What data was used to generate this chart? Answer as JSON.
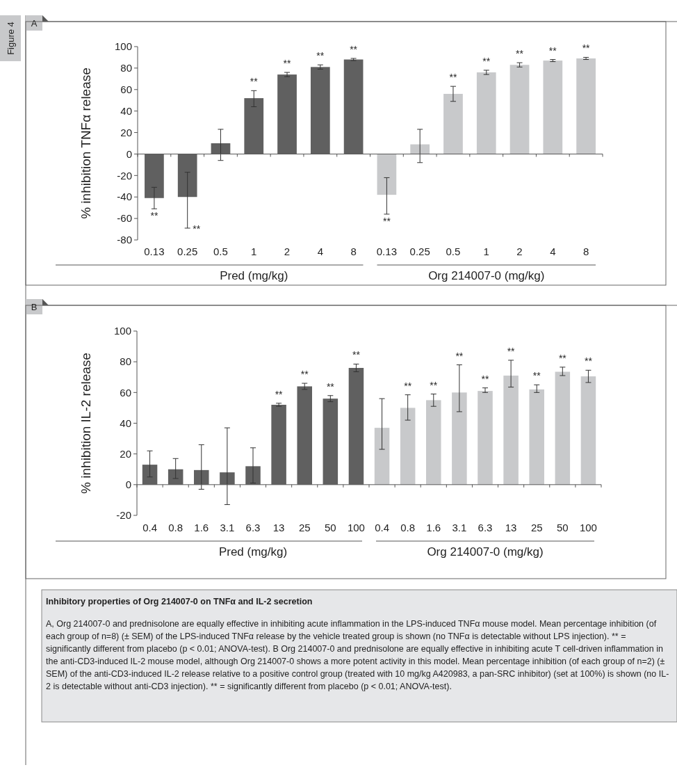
{
  "chart_data": [
    {
      "type": "bar",
      "ylabel": "% inhibition TNFα release",
      "categories": [
        "0.13",
        "0.25",
        "0.5",
        "1",
        "2",
        "4",
        "8",
        "0.13",
        "0.25",
        "0.5",
        "1",
        "2",
        "4",
        "8"
      ],
      "ylim": [
        -80,
        100
      ],
      "yticks": [
        -80,
        -60,
        -40,
        -20,
        0,
        20,
        40,
        60,
        80,
        100
      ],
      "annotations": [
        "A",
        "Figure 4",
        "Pred (mg/kg)",
        "Org 214007-0 (mg/kg)"
      ],
      "series": [
        {
          "color": "#606060",
          "values": [
            -41,
            -40,
            10,
            52,
            74,
            81,
            88,
            null,
            null,
            null,
            null,
            null,
            null,
            null
          ],
          "errors": [
            10,
            [
              -69,
              -17
            ],
            [
              -6,
              23
            ],
            [
              44,
              59
            ],
            2,
            2,
            1,
            null,
            null,
            null,
            null,
            null,
            null,
            null
          ],
          "value_labels": [
            "**",
            "**",
            null,
            "**",
            "**",
            "**",
            "**",
            null,
            null,
            null,
            null,
            null,
            null,
            null
          ]
        },
        {
          "color": "#c8c9cb",
          "values": [
            null,
            null,
            null,
            null,
            null,
            null,
            null,
            -38,
            9,
            56,
            76,
            83,
            87,
            89
          ],
          "errors": [
            null,
            null,
            null,
            null,
            null,
            null,
            null,
            [
              -56,
              -22
            ],
            [
              -8,
              23
            ],
            [
              49,
              63
            ],
            2,
            2,
            1,
            1
          ],
          "value_labels": [
            null,
            null,
            null,
            null,
            null,
            null,
            null,
            "**",
            null,
            "**",
            "**",
            "**",
            "**",
            "**"
          ]
        }
      ]
    },
    {
      "type": "bar",
      "ylabel": "% inhibition IL-2 release",
      "categories": [
        "0.4",
        "0.8",
        "1.6",
        "3.1",
        "6.3",
        "13",
        "25",
        "50",
        "100",
        "0.4",
        "0.8",
        "1.6",
        "3.1",
        "6.3",
        "13",
        "25",
        "50",
        "100"
      ],
      "ylim": [
        -20,
        100
      ],
      "yticks": [
        -20,
        0,
        20,
        40,
        60,
        80,
        100
      ],
      "annotations": [
        "B",
        "Pred (mg/kg)",
        "Org 214007-0 (mg/kg)",
        "Inhibitory properties of Org 214007-0 on TNFα and IL-2 secretion",
        "A, Org 214007-0 and prednisolone are equally effective in inhibiting acute inflammation in the LPS-induced TNFα mouse model. Mean percentage inhibition (of each group of n=8) (± SEM) of the LPS-induced TNFα release by the vehicle treated group is shown (no TNFα is detectable without LPS injection). ** = significantly different from placebo (p < 0.01; ANOVA-test). B Org 214007-0 and prednisolone are equally effective in inhibiting acute T cell-driven inflammation in the anti-CD3-induced IL-2 mouse model, although Org 214007-0 shows a more potent activity in this model. Mean percentage inhibition (of each group of n=2) (± SEM) of the anti-CD3-induced IL-2 release relative to a positive control group (treated with 10 mg/kg A420983, a pan-SRC inhibitor) (set at 100%) is shown (no IL-2 is detectable without anti-CD3 injection). ** = significantly different from placebo (p < 0.01; ANOVA-test)."
      ],
      "series": [
        {
          "color": "#606060",
          "values": [
            13,
            10,
            9.5,
            8,
            12,
            52,
            64,
            56,
            76,
            null,
            null,
            null,
            null,
            null,
            null,
            null,
            null,
            null
          ],
          "errors": [
            [
              5,
              22
            ],
            [
              4,
              17
            ],
            [
              -3,
              26
            ],
            [
              -13,
              37
            ],
            [
              1,
              24
            ],
            1,
            2,
            2,
            2.5,
            null,
            null,
            null,
            null,
            null,
            null,
            null,
            null,
            null
          ],
          "value_labels": [
            null,
            null,
            null,
            null,
            null,
            "**",
            "**",
            "**",
            "**",
            null,
            null,
            null,
            null,
            null,
            null,
            null,
            null,
            null
          ]
        },
        {
          "color": "#c8c9cb",
          "values": [
            null,
            null,
            null,
            null,
            null,
            null,
            null,
            null,
            null,
            37,
            50,
            55,
            60,
            61,
            71,
            62,
            73.5,
            70.5
          ],
          "errors": [
            null,
            null,
            null,
            null,
            null,
            null,
            null,
            null,
            null,
            [
              23,
              56
            ],
            [
              42,
              58.5
            ],
            [
              51,
              59
            ],
            [
              47.5,
              78
            ],
            [
              60,
              63
            ],
            [
              63.5,
              81
            ],
            [
              60,
              65
            ],
            [
              71,
              76.5
            ],
            [
              66.5,
              74.5
            ]
          ],
          "value_labels": [
            null,
            null,
            null,
            null,
            null,
            null,
            null,
            null,
            null,
            null,
            "**",
            "**",
            "**",
            "**",
            "**",
            "**",
            "**",
            "**"
          ]
        }
      ]
    }
  ]
}
